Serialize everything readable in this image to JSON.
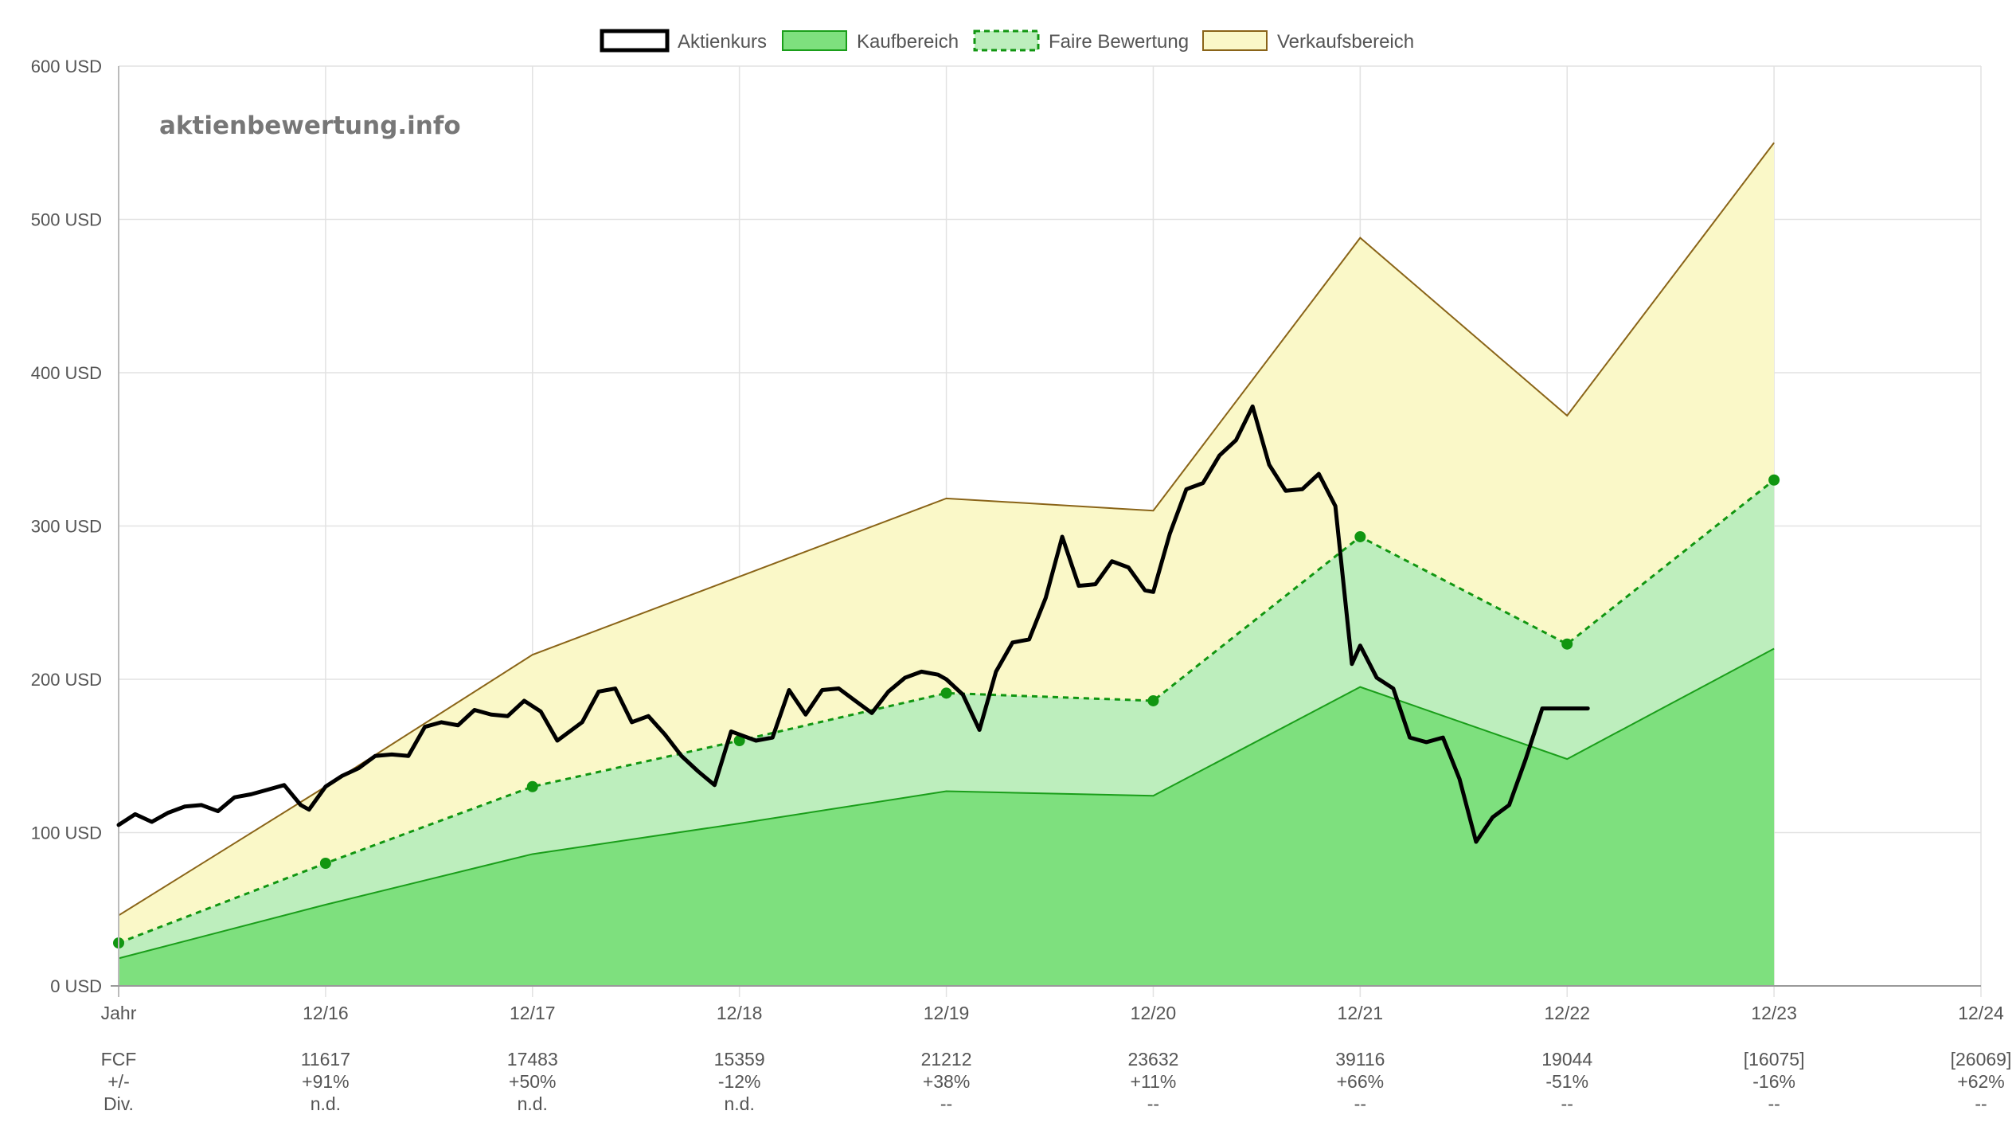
{
  "watermark": "aktienbewertung.info",
  "legend": [
    {
      "label": "Aktienkurs",
      "icon": "stock-price-swatch"
    },
    {
      "label": "Kaufbereich",
      "icon": "buy-zone-swatch"
    },
    {
      "label": "Faire Bewertung",
      "icon": "fair-value-swatch"
    },
    {
      "label": "Verkaufsbereich",
      "icon": "sell-zone-swatch"
    }
  ],
  "colors": {
    "stock": "#000000",
    "buy_fill": "#7ee07e",
    "buy_line": "#1a9e1a",
    "fair_fill": "#bdeebd",
    "fair_line": "#119611",
    "fair_point": "#119611",
    "sell_fill": "#faf8c8",
    "sell_line": "#8a6418",
    "grid": "#e2e2e2",
    "axis": "#bbbbbb"
  },
  "chart_data": {
    "type": "line",
    "ylim": [
      0,
      600
    ],
    "y_ticks": [
      {
        "value": 0,
        "label": "0 USD"
      },
      {
        "value": 100,
        "label": "100 USD"
      },
      {
        "value": 200,
        "label": "200 USD"
      },
      {
        "value": 300,
        "label": "300 USD"
      },
      {
        "value": 400,
        "label": "400 USD"
      },
      {
        "value": 500,
        "label": "500 USD"
      },
      {
        "value": 600,
        "label": "600 USD"
      }
    ],
    "x_labels": [
      "Jahr",
      "12/16",
      "12/17",
      "12/18",
      "12/19",
      "12/20",
      "12/21",
      "12/22",
      "12/23",
      "12/24"
    ],
    "grid": true,
    "legend_position": "top",
    "zones": {
      "kaufbereich": [
        18,
        53,
        86,
        106,
        127,
        124,
        195,
        148,
        220
      ],
      "faire_bewertung": [
        28,
        80,
        130,
        160,
        191,
        186,
        293,
        223,
        330
      ],
      "verkaufsbereich": [
        46,
        130,
        216,
        267,
        318,
        310,
        488,
        372,
        550
      ]
    },
    "series": [
      {
        "name": "Aktienkurs",
        "x": [
          0.0,
          0.08,
          0.16,
          0.24,
          0.32,
          0.4,
          0.48,
          0.56,
          0.64,
          0.72,
          0.8,
          0.88,
          0.92,
          1.0,
          1.08,
          1.16,
          1.24,
          1.32,
          1.4,
          1.48,
          1.56,
          1.64,
          1.72,
          1.8,
          1.88,
          1.96,
          2.04,
          2.12,
          2.24,
          2.32,
          2.4,
          2.48,
          2.56,
          2.64,
          2.72,
          2.8,
          2.88,
          2.96,
          3.0,
          3.08,
          3.16,
          3.24,
          3.32,
          3.4,
          3.48,
          3.56,
          3.64,
          3.72,
          3.8,
          3.88,
          3.96,
          4.0,
          4.08,
          4.16,
          4.24,
          4.32,
          4.4,
          4.48,
          4.56,
          4.64,
          4.72,
          4.8,
          4.88,
          4.96,
          5.0,
          5.08,
          5.16,
          5.24,
          5.32,
          5.4,
          5.48,
          5.56,
          5.64,
          5.72,
          5.8,
          5.88,
          5.96,
          6.0,
          6.08,
          6.16,
          6.24,
          6.32,
          6.4,
          6.48,
          6.56,
          6.64,
          6.72,
          6.8,
          6.88,
          6.96,
          7.04,
          7.1
        ],
        "values": [
          105,
          112,
          107,
          113,
          117,
          118,
          114,
          123,
          125,
          128,
          131,
          118,
          115,
          130,
          137,
          142,
          150,
          151,
          150,
          169,
          172,
          170,
          180,
          177,
          176,
          186,
          179,
          160,
          172,
          192,
          194,
          172,
          176,
          164,
          150,
          140,
          131,
          166,
          164,
          160,
          162,
          193,
          177,
          193,
          194,
          186,
          178,
          192,
          201,
          205,
          203,
          200,
          190,
          167,
          205,
          224,
          226,
          253,
          293,
          261,
          262,
          277,
          273,
          258,
          257,
          295,
          324,
          328,
          346,
          356,
          378,
          340,
          323,
          324,
          334,
          313,
          210,
          222,
          201,
          194,
          162,
          159,
          162,
          135,
          94,
          110,
          118,
          148,
          181,
          181,
          181,
          181
        ]
      }
    ]
  },
  "table": {
    "rows": [
      {
        "label": "FCF",
        "values": [
          "11617",
          "17483",
          "15359",
          "21212",
          "23632",
          "39116",
          "19044",
          "[16075]",
          "[26069]"
        ]
      },
      {
        "label": "+/-",
        "values": [
          "+91%",
          "+50%",
          "-12%",
          "+38%",
          "+11%",
          "+66%",
          "-51%",
          "-16%",
          "+62%"
        ]
      },
      {
        "label": "Div.",
        "values": [
          "n.d.",
          "n.d.",
          "n.d.",
          "--",
          "--",
          "--",
          "--",
          "--",
          "--"
        ]
      }
    ]
  }
}
